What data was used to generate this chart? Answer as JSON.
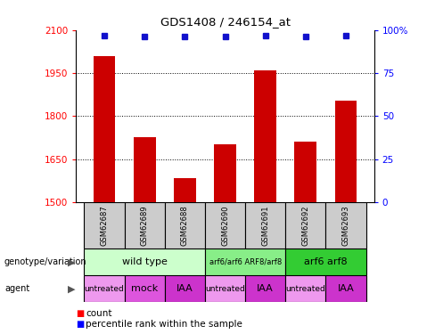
{
  "title": "GDS1408 / 246154_at",
  "samples": [
    "GSM62687",
    "GSM62689",
    "GSM62688",
    "GSM62690",
    "GSM62691",
    "GSM62692",
    "GSM62693"
  ],
  "counts": [
    2010,
    1725,
    1582,
    1700,
    1960,
    1712,
    1855
  ],
  "percentiles": [
    97,
    96,
    96,
    96,
    97,
    96,
    97
  ],
  "ylim_left": [
    1500,
    2100
  ],
  "ylim_right": [
    0,
    100
  ],
  "yticks_left": [
    1500,
    1650,
    1800,
    1950,
    2100
  ],
  "yticks_right": [
    0,
    25,
    50,
    75,
    100
  ],
  "ytick_labels_right": [
    "0",
    "25",
    "50",
    "75",
    "100%"
  ],
  "bar_color": "#cc0000",
  "dot_color": "#1111cc",
  "bar_width": 0.55,
  "genotype_groups": [
    {
      "label": "wild type",
      "start": 0,
      "end": 2,
      "color": "#ccffcc",
      "text_size": 8
    },
    {
      "label": "arf6/arf6 ARF8/arf8",
      "start": 3,
      "end": 4,
      "color": "#88ee88",
      "text_size": 6
    },
    {
      "label": "arf6 arf8",
      "start": 5,
      "end": 6,
      "color": "#33cc33",
      "text_size": 8
    }
  ],
  "agent_groups": [
    {
      "label": "untreated",
      "start": 0,
      "end": 0,
      "color": "#ee99ee",
      "text_size": 6.5
    },
    {
      "label": "mock",
      "start": 1,
      "end": 1,
      "color": "#dd55dd",
      "text_size": 8
    },
    {
      "label": "IAA",
      "start": 2,
      "end": 2,
      "color": "#cc33cc",
      "text_size": 8
    },
    {
      "label": "untreated",
      "start": 3,
      "end": 3,
      "color": "#ee99ee",
      "text_size": 6.5
    },
    {
      "label": "IAA",
      "start": 4,
      "end": 4,
      "color": "#cc33cc",
      "text_size": 8
    },
    {
      "label": "untreated",
      "start": 5,
      "end": 5,
      "color": "#ee99ee",
      "text_size": 6.5
    },
    {
      "label": "IAA",
      "start": 6,
      "end": 6,
      "color": "#cc33cc",
      "text_size": 8
    }
  ]
}
